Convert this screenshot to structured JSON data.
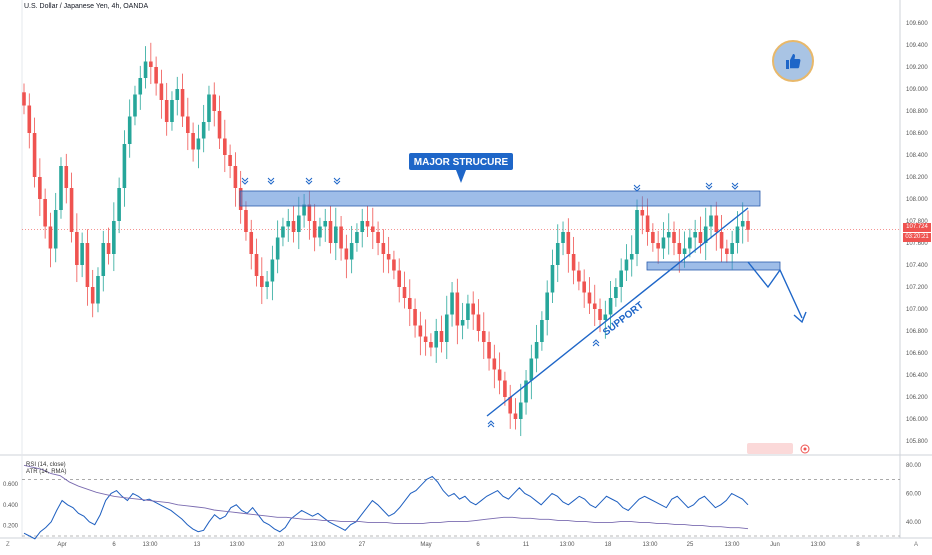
{
  "header": {
    "title": "U.S. Dollar / Japanese Yen, 4h, OANDA"
  },
  "price_tags": {
    "last": "107.724",
    "countdown": "03:20:21"
  },
  "annotations": {
    "major_label": "MAJOR STRUCURE",
    "support_label": "SUPPORT"
  },
  "indicator": {
    "legend_line1": "RSI (14, close)",
    "legend_line2": "ATR (14, RMA)"
  },
  "footer": {
    "corner_left": "Z",
    "corner_right": "A"
  },
  "colors": {
    "up": "#26a69a",
    "down": "#ef5350",
    "accent": "#1e66c8",
    "zone": "#4f86d6",
    "rsi": "#1e5fc0",
    "atr": "#7a6bb0"
  },
  "chart_data": [
    {
      "type": "candlestick",
      "title": "U.S. Dollar / Japanese Yen, 4h, OANDA",
      "y_ticks": [
        "109.600",
        "109.400",
        "109.200",
        "109.000",
        "108.800",
        "108.600",
        "108.400",
        "108.200",
        "108.000",
        "107.800",
        "107.600",
        "107.400",
        "107.200",
        "107.000",
        "106.800",
        "106.600",
        "106.400",
        "106.200",
        "106.000",
        "105.800"
      ],
      "x_ticks": [
        "Apr",
        "6",
        "13:00",
        "13",
        "13:00",
        "20",
        "13:00",
        "27",
        "May",
        "6",
        "11",
        "13:00",
        "18",
        "13:00",
        "25",
        "13:00",
        "Jun",
        "13:00",
        "8"
      ],
      "ylim": [
        105.7,
        109.7
      ],
      "last_price": 107.724,
      "close_series": [
        108.85,
        108.6,
        108.2,
        108.0,
        107.75,
        107.55,
        107.9,
        108.3,
        108.1,
        107.7,
        107.4,
        107.6,
        107.2,
        107.05,
        107.3,
        107.6,
        107.5,
        107.8,
        108.1,
        108.5,
        108.75,
        108.95,
        109.1,
        109.25,
        109.2,
        109.05,
        108.9,
        108.7,
        108.9,
        109.0,
        108.75,
        108.6,
        108.45,
        108.55,
        108.7,
        108.95,
        108.8,
        108.55,
        108.4,
        108.3,
        108.1,
        107.9,
        107.7,
        107.5,
        107.3,
        107.2,
        107.25,
        107.45,
        107.65,
        107.75,
        107.8,
        107.7,
        107.85,
        107.95,
        107.8,
        107.65,
        107.75,
        107.8,
        107.6,
        107.75,
        107.55,
        107.45,
        107.6,
        107.7,
        107.8,
        107.75,
        107.7,
        107.6,
        107.5,
        107.45,
        107.35,
        107.2,
        107.1,
        107.0,
        106.85,
        106.75,
        106.7,
        106.65,
        106.8,
        106.7,
        106.95,
        107.15,
        106.85,
        106.9,
        107.05,
        106.95,
        106.8,
        106.7,
        106.55,
        106.45,
        106.35,
        106.2,
        106.05,
        106.0,
        106.15,
        106.35,
        106.55,
        106.7,
        106.9,
        107.15,
        107.4,
        107.6,
        107.7,
        107.5,
        107.35,
        107.25,
        107.15,
        107.05,
        107.0,
        106.9,
        106.95,
        107.1,
        107.2,
        107.35,
        107.45,
        107.5,
        107.9,
        107.85,
        107.7,
        107.6,
        107.55,
        107.65,
        107.7,
        107.6,
        107.5,
        107.55,
        107.65,
        107.7,
        107.6,
        107.75,
        107.85,
        107.7,
        107.55,
        107.5,
        107.6,
        107.75,
        107.8,
        107.72
      ]
    },
    {
      "type": "line",
      "series": [
        {
          "name": "RSI (14, close)",
          "values": [
            32,
            30,
            28,
            33,
            36,
            40,
            48,
            55,
            52,
            50,
            46,
            44,
            40,
            38,
            45,
            55,
            60,
            62,
            58,
            55,
            60,
            58,
            55,
            56,
            54,
            52,
            50,
            48,
            45,
            42,
            38,
            35,
            33,
            34,
            40,
            45,
            42,
            44,
            50,
            52,
            48,
            46,
            50,
            45,
            40,
            38,
            35,
            33,
            36,
            42,
            45,
            48,
            46,
            44,
            46,
            43,
            40,
            38,
            36,
            34,
            38,
            40,
            45,
            50,
            55,
            52,
            48,
            44,
            46,
            50,
            55,
            60,
            62,
            66,
            70,
            72,
            68,
            62,
            58,
            60,
            56,
            58,
            54,
            52,
            55,
            58,
            60,
            62,
            58,
            56,
            60,
            64,
            60,
            58,
            55,
            52,
            56,
            60,
            58,
            54,
            52,
            55,
            58,
            56,
            52,
            50,
            54,
            58,
            56,
            54,
            50,
            48,
            52,
            56,
            58,
            56,
            54,
            52,
            50,
            56,
            58,
            54,
            50,
            52,
            56,
            58,
            54,
            50,
            52,
            55,
            60,
            58,
            56,
            52
          ]
        },
        {
          "name": "ATR (14, RMA)",
          "values": [
            0.78,
            0.76,
            0.74,
            0.7,
            0.68,
            0.62,
            0.58,
            0.55,
            0.52,
            0.5,
            0.48,
            0.47,
            0.46,
            0.45,
            0.44,
            0.43,
            0.42,
            0.4,
            0.39,
            0.38,
            0.37,
            0.35,
            0.34,
            0.33,
            0.32,
            0.31,
            0.3,
            0.29,
            0.28,
            0.28,
            0.27,
            0.26,
            0.26,
            0.25,
            0.25,
            0.24,
            0.24,
            0.24,
            0.23,
            0.23,
            0.23,
            0.22,
            0.22,
            0.22,
            0.22,
            0.23,
            0.23,
            0.24,
            0.24,
            0.24,
            0.25,
            0.26,
            0.27,
            0.28,
            0.28,
            0.27,
            0.27,
            0.26,
            0.26,
            0.25,
            0.25,
            0.24,
            0.24,
            0.23,
            0.23,
            0.23,
            0.24,
            0.24,
            0.23,
            0.23,
            0.22,
            0.22,
            0.21,
            0.21,
            0.2,
            0.2,
            0.19,
            0.19,
            0.18,
            0.18,
            0.17
          ]
        }
      ],
      "left_ticks": [
        "0.600",
        "0.400",
        "0.200"
      ],
      "right_ticks": [
        "80.00",
        "60.00",
        "40.00"
      ],
      "levels": [
        70,
        30
      ]
    }
  ]
}
